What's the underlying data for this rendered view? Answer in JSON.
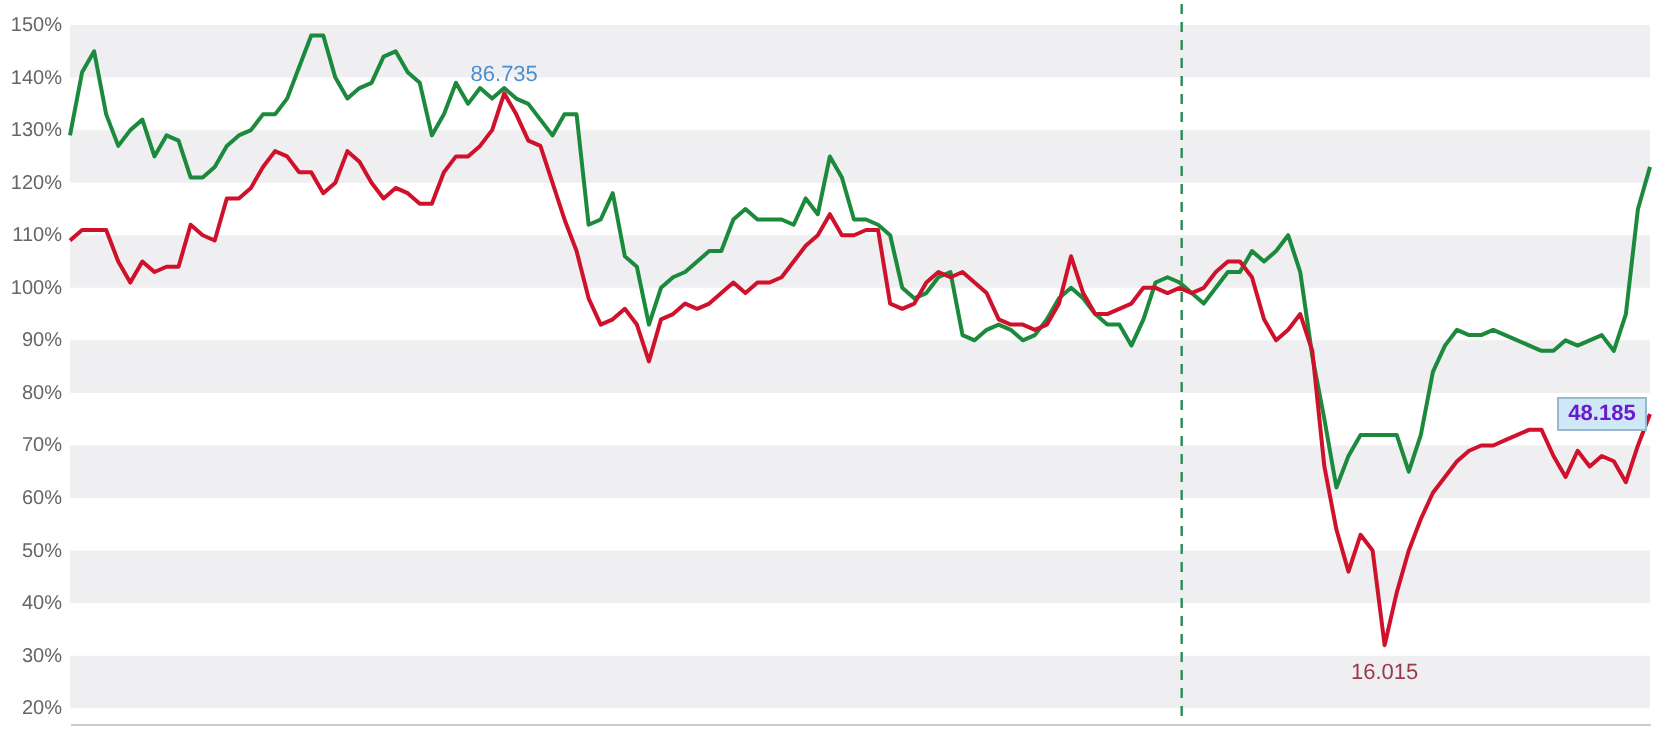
{
  "chart_data": {
    "type": "line",
    "categories": [
      null,
      null,
      null,
      null,
      null,
      null,
      null,
      null,
      null,
      null,
      null,
      null,
      null,
      null,
      null,
      null,
      null,
      null,
      null,
      null,
      null,
      null,
      null,
      null,
      null,
      null,
      null,
      null,
      null,
      null,
      null,
      null,
      null,
      null,
      null,
      null,
      null,
      null,
      null,
      null,
      null,
      null,
      null,
      null,
      null,
      null,
      null,
      null,
      null,
      null,
      null,
      null,
      null,
      null,
      null,
      null,
      null,
      null,
      null,
      null,
      null,
      null,
      null,
      null,
      null,
      null,
      null,
      null,
      null,
      null,
      null,
      null,
      null,
      null,
      null,
      null,
      null,
      null,
      null,
      null,
      null,
      null,
      null,
      null,
      null,
      null,
      null,
      null,
      null,
      null,
      null,
      null,
      null,
      null,
      null,
      null,
      null,
      null,
      null,
      null,
      null,
      null,
      null,
      null,
      null,
      null,
      null,
      null,
      null,
      null,
      null,
      null,
      null,
      null,
      null,
      null,
      null,
      null,
      null,
      null,
      null,
      null,
      null,
      null,
      null,
      null,
      null,
      null,
      null,
      null,
      null,
      null
    ],
    "series": [
      {
        "color": "#1b8a3c",
        "values": [
          129,
          141,
          145,
          133,
          127,
          130,
          132,
          125,
          129,
          128,
          121,
          121,
          123,
          127,
          129,
          130,
          133,
          133,
          136,
          142,
          148,
          148,
          140,
          136,
          138,
          139,
          144,
          145,
          141,
          139,
          129,
          133,
          139,
          135,
          138,
          136,
          138,
          136,
          135,
          132,
          129,
          133,
          133,
          112,
          113,
          118,
          106,
          104,
          93,
          100,
          102,
          103,
          105,
          107,
          107,
          113,
          115,
          113,
          113,
          113,
          112,
          117,
          114,
          125,
          121,
          113,
          113,
          112,
          110,
          100,
          98,
          99,
          102,
          103,
          91,
          90,
          92,
          93,
          92,
          90,
          91,
          94,
          98,
          100,
          98,
          95,
          93,
          93,
          89,
          94,
          101,
          102,
          101,
          99,
          97,
          100,
          103,
          103,
          107,
          105,
          107,
          110,
          103,
          87,
          75,
          62,
          68,
          72,
          72,
          72,
          72,
          65,
          72,
          84,
          89,
          92,
          91,
          91,
          92,
          91,
          90,
          89,
          88,
          88,
          90,
          89,
          90,
          91,
          88,
          95,
          115,
          123
        ]
      },
      {
        "color": "#d0112b",
        "values": [
          109,
          111,
          111,
          111,
          105,
          101,
          105,
          103,
          104,
          104,
          112,
          110,
          109,
          117,
          117,
          119,
          123,
          126,
          125,
          122,
          122,
          118,
          120,
          126,
          124,
          120,
          117,
          119,
          118,
          116,
          116,
          122,
          125,
          125,
          127,
          130,
          137,
          133,
          128,
          127,
          120,
          113,
          107,
          98,
          93,
          94,
          96,
          93,
          86,
          94,
          95,
          97,
          96,
          97,
          99,
          101,
          99,
          101,
          101,
          102,
          105,
          108,
          110,
          114,
          110,
          110,
          111,
          111,
          97,
          96,
          97,
          101,
          103,
          102,
          103,
          101,
          99,
          94,
          93,
          93,
          92,
          93,
          97,
          106,
          99,
          95,
          95,
          96,
          97,
          100,
          100,
          99,
          100,
          99,
          100,
          103,
          105,
          105,
          102,
          94,
          90,
          92,
          95,
          88,
          66,
          54,
          46,
          53,
          50,
          32,
          42,
          50,
          56,
          61,
          64,
          67,
          69,
          70,
          70,
          71,
          72,
          73,
          73,
          68,
          64,
          69,
          66,
          68,
          67,
          63,
          70,
          76
        ]
      }
    ],
    "ylim": [
      17,
      154
    ],
    "yticks": [
      {
        "value": 20,
        "label": "20%"
      },
      {
        "value": 30,
        "label": "30%"
      },
      {
        "value": 40,
        "label": "40%"
      },
      {
        "value": 50,
        "label": "50%"
      },
      {
        "value": 60,
        "label": "60%"
      },
      {
        "value": 70,
        "label": "70%"
      },
      {
        "value": 80,
        "label": "80%"
      },
      {
        "value": 90,
        "label": "90%"
      },
      {
        "value": 100,
        "label": "100%"
      },
      {
        "value": 110,
        "label": "110%"
      },
      {
        "value": 120,
        "label": "120%"
      },
      {
        "value": 130,
        "label": "130%"
      },
      {
        "value": 140,
        "label": "140%"
      },
      {
        "value": 150,
        "label": "150%"
      }
    ],
    "tick_labels": "y",
    "bands": [
      {
        "axis": "y",
        "from": 20,
        "to": 30,
        "color": "#efeff1"
      },
      {
        "axis": "y",
        "from": 40,
        "to": 50,
        "color": "#efeff1"
      },
      {
        "axis": "y",
        "from": 60,
        "to": 70,
        "color": "#efeff1"
      },
      {
        "axis": "y",
        "from": 80,
        "to": 90,
        "color": "#efeff1"
      },
      {
        "axis": "y",
        "from": 100,
        "to": 110,
        "color": "#efeff1"
      },
      {
        "axis": "y",
        "from": 120,
        "to": 130,
        "color": "#efeff1"
      },
      {
        "axis": "y",
        "from": 140,
        "to": 150,
        "color": "#efeff1"
      }
    ],
    "annotations": [
      {
        "text": "86.735",
        "y": 137
      },
      {
        "text": "16.015",
        "y": 32
      },
      {
        "text": "48.185",
        "y": 76
      }
    ],
    "grid": false,
    "marker": "none",
    "line_style": "solid"
  }
}
